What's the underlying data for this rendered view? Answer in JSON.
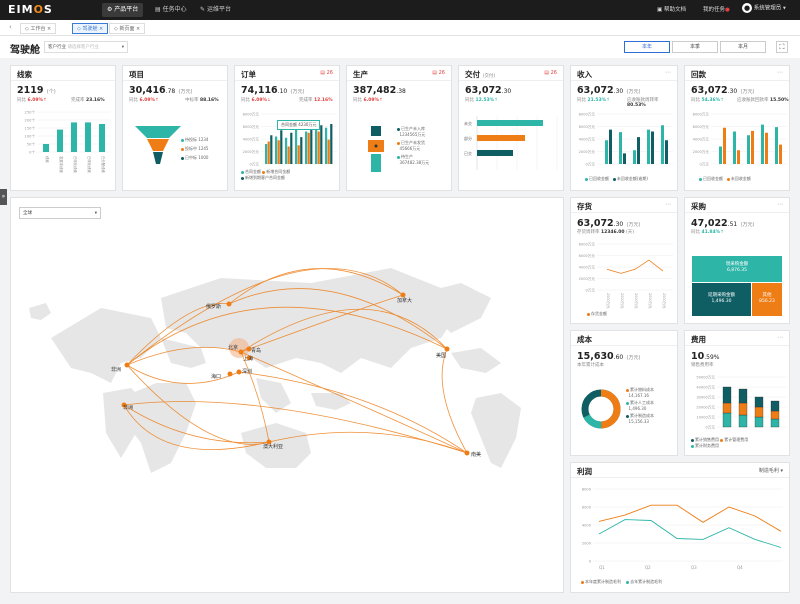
{
  "app": {
    "logo_a": "EIM",
    "logo_b": "O",
    "logo_c": "S"
  },
  "nav": [
    "产品平台",
    "任务中心",
    "运维平台"
  ],
  "topright": {
    "help": "帮助文档",
    "tasks": "我的任务",
    "user": "系统管理员"
  },
  "tabs": [
    "工作台",
    "驾驶舱",
    "新页面"
  ],
  "page": {
    "title": "驾驶舱",
    "industry_label": "客户行业",
    "industry_placeholder": "请选择客户行业",
    "periods": [
      "本年",
      "本季",
      "本月"
    ]
  },
  "colors": {
    "teal": "#2db5a8",
    "orange": "#ee7d16",
    "dark": "#0f5e64",
    "accent": "#2d6fd6"
  },
  "cards": {
    "clue": {
      "title": "线索",
      "value": "2119",
      "unit": "(个)",
      "yoy_label": "同比",
      "yoy": "6.09%",
      "conv_label": "完成率",
      "conv": "23.16%",
      "yticks": [
        "250个",
        "200个",
        "150个",
        "100个",
        "50个",
        "0个"
      ],
      "xlabels": [
        "线索",
        "发展中线索",
        "已转化线索",
        "已转化线索",
        "已分配线索"
      ]
    },
    "proj": {
      "title": "项目",
      "value": "30,416",
      "decimal": ".78",
      "unit": "(万元)",
      "yoy_label": "同比",
      "yoy": "6.09%",
      "win_label": "中标率",
      "win": "88.16%",
      "funnel": [
        {
          "label": "待投标",
          "value": "1234"
        },
        {
          "label": "投标中",
          "value": "1245"
        },
        {
          "label": "已中标",
          "value": "1000"
        }
      ]
    },
    "order": {
      "title": "订单",
      "badge": "26",
      "value": "74,116",
      "decimal": ".10",
      "unit": "(万元)",
      "yoy_label": "同比",
      "yoy": "6.09%",
      "done_label": "完成率",
      "done": "12.16%",
      "tip_label": "合同金额",
      "tip": "4230万元",
      "yticks": [
        "8000万元",
        "6000万元",
        "4000万元",
        "2000万元",
        "0万元"
      ],
      "legend": [
        "合同金额",
        "新增合同金额",
        "新增到期客户合同金额"
      ]
    },
    "prod": {
      "title": "生产",
      "badge": "26",
      "value": "387,482",
      "decimal": ".38",
      "yoy_label": "同比",
      "yoy": "6.09%",
      "items": [
        {
          "label": "已生产未入库",
          "value": "1234565万元"
        },
        {
          "label": "已生产未发货",
          "value": "45666万元"
        },
        {
          "label": "待生产",
          "value": "367482.38万元"
        }
      ]
    },
    "deliv": {
      "title": "交付",
      "title_sub": "(交付)",
      "badge": "26",
      "value": "63,072",
      "decimal": ".30",
      "yoy_label": "同比",
      "yoy": "12.53%",
      "bars": [
        "未交",
        "部分",
        "已交"
      ]
    },
    "income": {
      "title": "收入",
      "value": "63,072",
      "decimal": ".30",
      "unit": "(万元)",
      "yoy_label": "同比",
      "yoy": "21.53%",
      "ratio_label": "应收账款周转率",
      "ratio": "80.53%",
      "yticks": [
        "8000万元",
        "6000万元",
        "4000万元",
        "2000万元",
        "0万元"
      ],
      "legend": [
        "已回收金额",
        "未回收金额(逾期)"
      ]
    },
    "payback": {
      "title": "回款",
      "value": "63,072",
      "decimal": ".30",
      "unit": "(万元)",
      "yoy_label": "同比",
      "yoy": "54.36%",
      "ratio_label": "应收账款回款率",
      "ratio": "15.50%",
      "yticks": [
        "8000万元",
        "6000万元",
        "4000万元",
        "2000万元",
        "0万元"
      ],
      "legend": [
        "已回收金额",
        "未回收金额"
      ]
    },
    "stock": {
      "title": "存货",
      "value": "63,072",
      "decimal": ".30",
      "unit": "(万元)",
      "turn_label": "存货周转率",
      "turn": "12346.00",
      "unit2": "(天)",
      "yticks": [
        "8000万元",
        "6000万元",
        "4000万元",
        "2000万元",
        "0万元"
      ],
      "legend": "存货金额"
    },
    "purchase": {
      "title": "采购",
      "value": "47,022",
      "decimal": ".51",
      "unit": "(万元)",
      "yoy_label": "同比",
      "yoy": "41.84%",
      "blocks": [
        {
          "label": "現采购金额",
          "value": "6,876.35"
        },
        {
          "label": "延期采购金额",
          "value": "1,496.30"
        },
        {
          "label": "其他",
          "value": "856.23"
        }
      ]
    },
    "cost": {
      "title": "成本",
      "value": "15,630",
      "decimal": ".60",
      "unit": "(万元)",
      "sub": "本年累计成本",
      "items": [
        {
          "label": "累计物料成本",
          "value": "14,167.16"
        },
        {
          "label": "累计人工成本",
          "value": "1,496.30"
        },
        {
          "label": "累计制造成本",
          "value": "15,156.33"
        }
      ]
    },
    "expense": {
      "title": "费用",
      "value": "10",
      "decimal": ".59%",
      "sub": "销售费用率",
      "yticks": [
        "50000万元",
        "40000万元",
        "30000万元",
        "20000万元",
        "10000万元",
        "0万元"
      ],
      "legend": [
        "累计销售费用",
        "累计管理费用",
        "累计财务费用"
      ]
    },
    "profit": {
      "title": "利润",
      "select": "制造毛利",
      "yticks": [
        "8000",
        "6000",
        "4000",
        "2000",
        "0"
      ],
      "xlabels": [
        "Q1",
        "Q2",
        "Q3",
        "Q4"
      ],
      "legend": [
        "本年度累计制造毛利",
        "去年累计制造毛利"
      ]
    }
  },
  "map": {
    "select": "全球",
    "cities": [
      "俄罗斯",
      "加拿大",
      "美国",
      "北京",
      "青岛",
      "上海",
      "深圳",
      "海口",
      "非洲",
      "非洲",
      "澳大利亚",
      "南美"
    ]
  },
  "chart_data": [
    {
      "type": "bar",
      "title": "线索",
      "categories": [
        "线索",
        "发展中线索",
        "已转化线索",
        "已转化线索",
        "已分配线索"
      ],
      "values": [
        50,
        140,
        185,
        185,
        175
      ],
      "ylim": [
        0,
        250
      ]
    },
    {
      "type": "bar",
      "title": "收入",
      "series": [
        {
          "name": "已回收金额",
          "values": [
            3800,
            5100,
            2200,
            5500,
            6200
          ]
        },
        {
          "name": "未回收金额(逾期)",
          "values": [
            5500,
            1700,
            4300,
            5200,
            3800
          ]
        }
      ],
      "ylim": [
        0,
        8000
      ]
    },
    {
      "type": "line",
      "title": "存货",
      "x": [
        1,
        2,
        3,
        4,
        5
      ],
      "values": [
        3600,
        2900,
        3600,
        5200,
        3300
      ],
      "ylim": [
        0,
        8000
      ]
    },
    {
      "type": "line",
      "title": "利润",
      "categories": [
        "Q1",
        "",
        "Q2",
        "",
        "Q3",
        "",
        "Q4",
        ""
      ],
      "series": [
        {
          "name": "本年度累计制造毛利",
          "values": [
            4400,
            5100,
            6200,
            6200,
            4300,
            6000,
            5000,
            3300
          ]
        },
        {
          "name": "去年累计制造毛利",
          "values": [
            3000,
            4600,
            4500,
            2500,
            2400,
            3700,
            2400,
            1500
          ]
        }
      ],
      "ylim": [
        0,
        8000
      ]
    }
  ]
}
